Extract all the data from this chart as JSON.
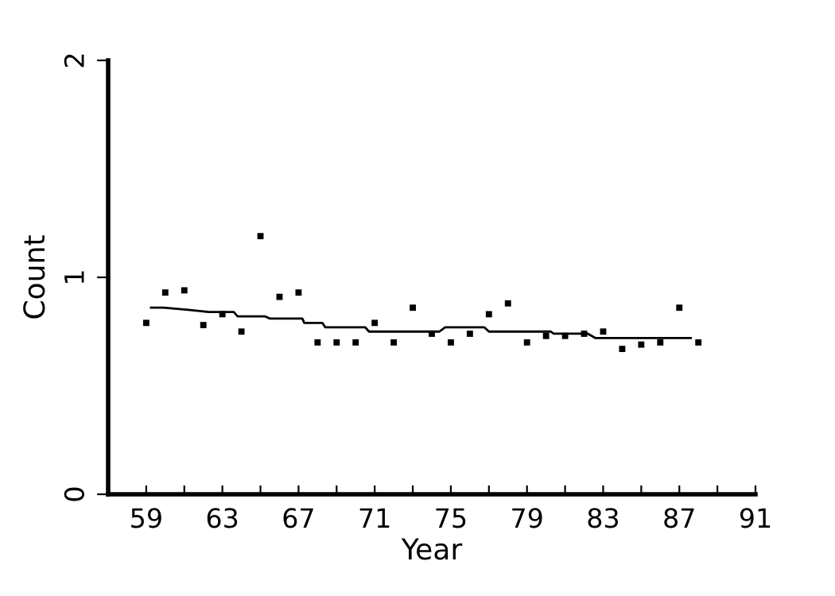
{
  "chart_data": {
    "type": "scatter",
    "xlabel": "Year",
    "ylabel": "Count",
    "xlim": [
      57,
      91
    ],
    "ylim": [
      0,
      2
    ],
    "xticks": [
      59,
      {
        "value": 61,
        "label": null
      },
      63,
      {
        "value": 65,
        "label": null
      },
      67,
      {
        "value": 69,
        "label": null
      },
      71,
      {
        "value": 73,
        "label": null
      },
      75,
      {
        "value": 77,
        "label": null
      },
      79,
      {
        "value": 81,
        "label": null
      },
      83,
      {
        "value": 85,
        "label": null
      },
      87,
      {
        "value": 89,
        "label": null
      },
      91
    ],
    "yticks": [
      0,
      1,
      2
    ],
    "grid": false,
    "legend": false,
    "series": [
      {
        "color": "#000000",
        "marker": "square",
        "x": [
          59,
          60,
          61,
          62,
          63,
          64,
          65,
          66,
          67,
          68,
          69,
          70,
          71,
          72,
          73,
          74,
          75,
          76,
          77,
          78,
          79,
          80,
          81,
          82,
          83,
          84,
          85,
          86,
          87,
          88
        ],
        "values": [
          0.79,
          0.93,
          0.94,
          0.78,
          0.83,
          0.75,
          1.19,
          0.91,
          0.93,
          0.7,
          0.7,
          0.7,
          0.79,
          0.7,
          0.86,
          0.74,
          0.7,
          0.74,
          0.83,
          0.88,
          0.7,
          0.73,
          0.73,
          0.74,
          0.75,
          0.67,
          0.69,
          0.7,
          0.86,
          0.7
        ]
      },
      {
        "type": "line",
        "color": "#000000",
        "line_style": "solid",
        "marker": "none",
        "x": [
          59.25,
          59.9,
          61.2,
          62.3,
          62.8,
          63.6,
          63.8,
          65.25,
          65.5,
          67.2,
          67.3,
          68.25,
          68.4,
          69.7,
          69.8,
          70.5,
          70.7,
          74.4,
          74.7,
          76.75,
          77,
          78.8,
          79,
          80.25,
          80.4,
          82.2,
          82.6,
          87.6
        ],
        "values": [
          0.86,
          0.86,
          0.85,
          0.84,
          0.84,
          0.84,
          0.82,
          0.82,
          0.81,
          0.81,
          0.79,
          0.79,
          0.77,
          0.77,
          0.77,
          0.77,
          0.75,
          0.75,
          0.77,
          0.77,
          0.75,
          0.75,
          0.75,
          0.75,
          0.74,
          0.74,
          0.72,
          0.72
        ]
      }
    ]
  }
}
